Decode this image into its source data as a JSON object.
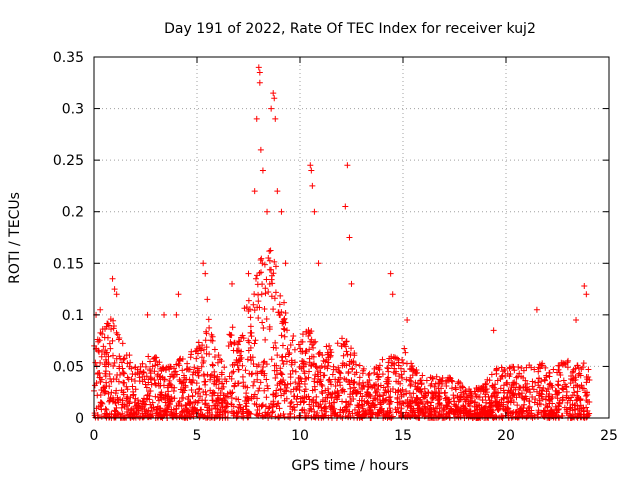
{
  "chart_data": {
    "type": "scatter",
    "title": "Day 191 of 2022, Rate Of TEC Index for receiver kuj2",
    "xlabel": "GPS time / hours",
    "ylabel": "ROTI / TECUs",
    "xlim": [
      0,
      25
    ],
    "ylim": [
      0,
      0.35
    ],
    "xticks": [
      "0",
      "5",
      "10",
      "15",
      "20",
      "25"
    ],
    "yticks": [
      "0",
      "0.05",
      "0.1",
      "0.15",
      "0.2",
      "0.25",
      "0.3",
      "0.35"
    ],
    "grid": true,
    "marker": "+",
    "marker_color": "#ff0000",
    "envelope": {
      "x": [
        0,
        0.5,
        1,
        1.5,
        2,
        2.5,
        3,
        3.5,
        4,
        4.5,
        5,
        5.5,
        6,
        6.5,
        7,
        7.5,
        8,
        8.5,
        9,
        9.5,
        10,
        10.5,
        11,
        11.5,
        12,
        12.5,
        13,
        13.5,
        14,
        14.5,
        15,
        15.5,
        16,
        16.5,
        17,
        17.5,
        18,
        18.5,
        19,
        19.5,
        20,
        20.5,
        21,
        21.5,
        22,
        22.5,
        23,
        23.5,
        24
      ],
      "typical_max": [
        0.07,
        0.09,
        0.1,
        0.07,
        0.05,
        0.06,
        0.06,
        0.05,
        0.06,
        0.06,
        0.07,
        0.1,
        0.07,
        0.08,
        0.1,
        0.12,
        0.15,
        0.17,
        0.14,
        0.08,
        0.08,
        0.09,
        0.07,
        0.07,
        0.08,
        0.07,
        0.05,
        0.05,
        0.06,
        0.06,
        0.07,
        0.05,
        0.04,
        0.04,
        0.04,
        0.04,
        0.03,
        0.03,
        0.04,
        0.05,
        0.05,
        0.05,
        0.05,
        0.06,
        0.05,
        0.05,
        0.06,
        0.06,
        0.05
      ]
    },
    "outliers": [
      {
        "x": 0.1,
        "y": 0.1
      },
      {
        "x": 0.3,
        "y": 0.105
      },
      {
        "x": 0.9,
        "y": 0.135
      },
      {
        "x": 1.0,
        "y": 0.125
      },
      {
        "x": 1.1,
        "y": 0.12
      },
      {
        "x": 2.6,
        "y": 0.1
      },
      {
        "x": 3.4,
        "y": 0.1
      },
      {
        "x": 4.0,
        "y": 0.1
      },
      {
        "x": 4.1,
        "y": 0.12
      },
      {
        "x": 5.3,
        "y": 0.15
      },
      {
        "x": 5.4,
        "y": 0.14
      },
      {
        "x": 5.5,
        "y": 0.115
      },
      {
        "x": 6.7,
        "y": 0.13
      },
      {
        "x": 7.5,
        "y": 0.14
      },
      {
        "x": 7.8,
        "y": 0.22
      },
      {
        "x": 7.9,
        "y": 0.29
      },
      {
        "x": 8.0,
        "y": 0.34
      },
      {
        "x": 8.05,
        "y": 0.335
      },
      {
        "x": 8.05,
        "y": 0.325
      },
      {
        "x": 8.1,
        "y": 0.26
      },
      {
        "x": 8.2,
        "y": 0.24
      },
      {
        "x": 8.4,
        "y": 0.2
      },
      {
        "x": 8.6,
        "y": 0.3
      },
      {
        "x": 8.7,
        "y": 0.315
      },
      {
        "x": 8.75,
        "y": 0.31
      },
      {
        "x": 8.8,
        "y": 0.29
      },
      {
        "x": 8.9,
        "y": 0.22
      },
      {
        "x": 9.1,
        "y": 0.2
      },
      {
        "x": 9.3,
        "y": 0.15
      },
      {
        "x": 10.5,
        "y": 0.245
      },
      {
        "x": 10.55,
        "y": 0.24
      },
      {
        "x": 10.6,
        "y": 0.225
      },
      {
        "x": 10.7,
        "y": 0.2
      },
      {
        "x": 10.9,
        "y": 0.15
      },
      {
        "x": 12.2,
        "y": 0.205
      },
      {
        "x": 12.3,
        "y": 0.245
      },
      {
        "x": 12.4,
        "y": 0.175
      },
      {
        "x": 12.5,
        "y": 0.13
      },
      {
        "x": 14.4,
        "y": 0.14
      },
      {
        "x": 14.5,
        "y": 0.12
      },
      {
        "x": 15.2,
        "y": 0.095
      },
      {
        "x": 19.4,
        "y": 0.085
      },
      {
        "x": 21.5,
        "y": 0.105
      },
      {
        "x": 23.4,
        "y": 0.095
      },
      {
        "x": 23.8,
        "y": 0.128
      },
      {
        "x": 23.9,
        "y": 0.12
      }
    ]
  }
}
